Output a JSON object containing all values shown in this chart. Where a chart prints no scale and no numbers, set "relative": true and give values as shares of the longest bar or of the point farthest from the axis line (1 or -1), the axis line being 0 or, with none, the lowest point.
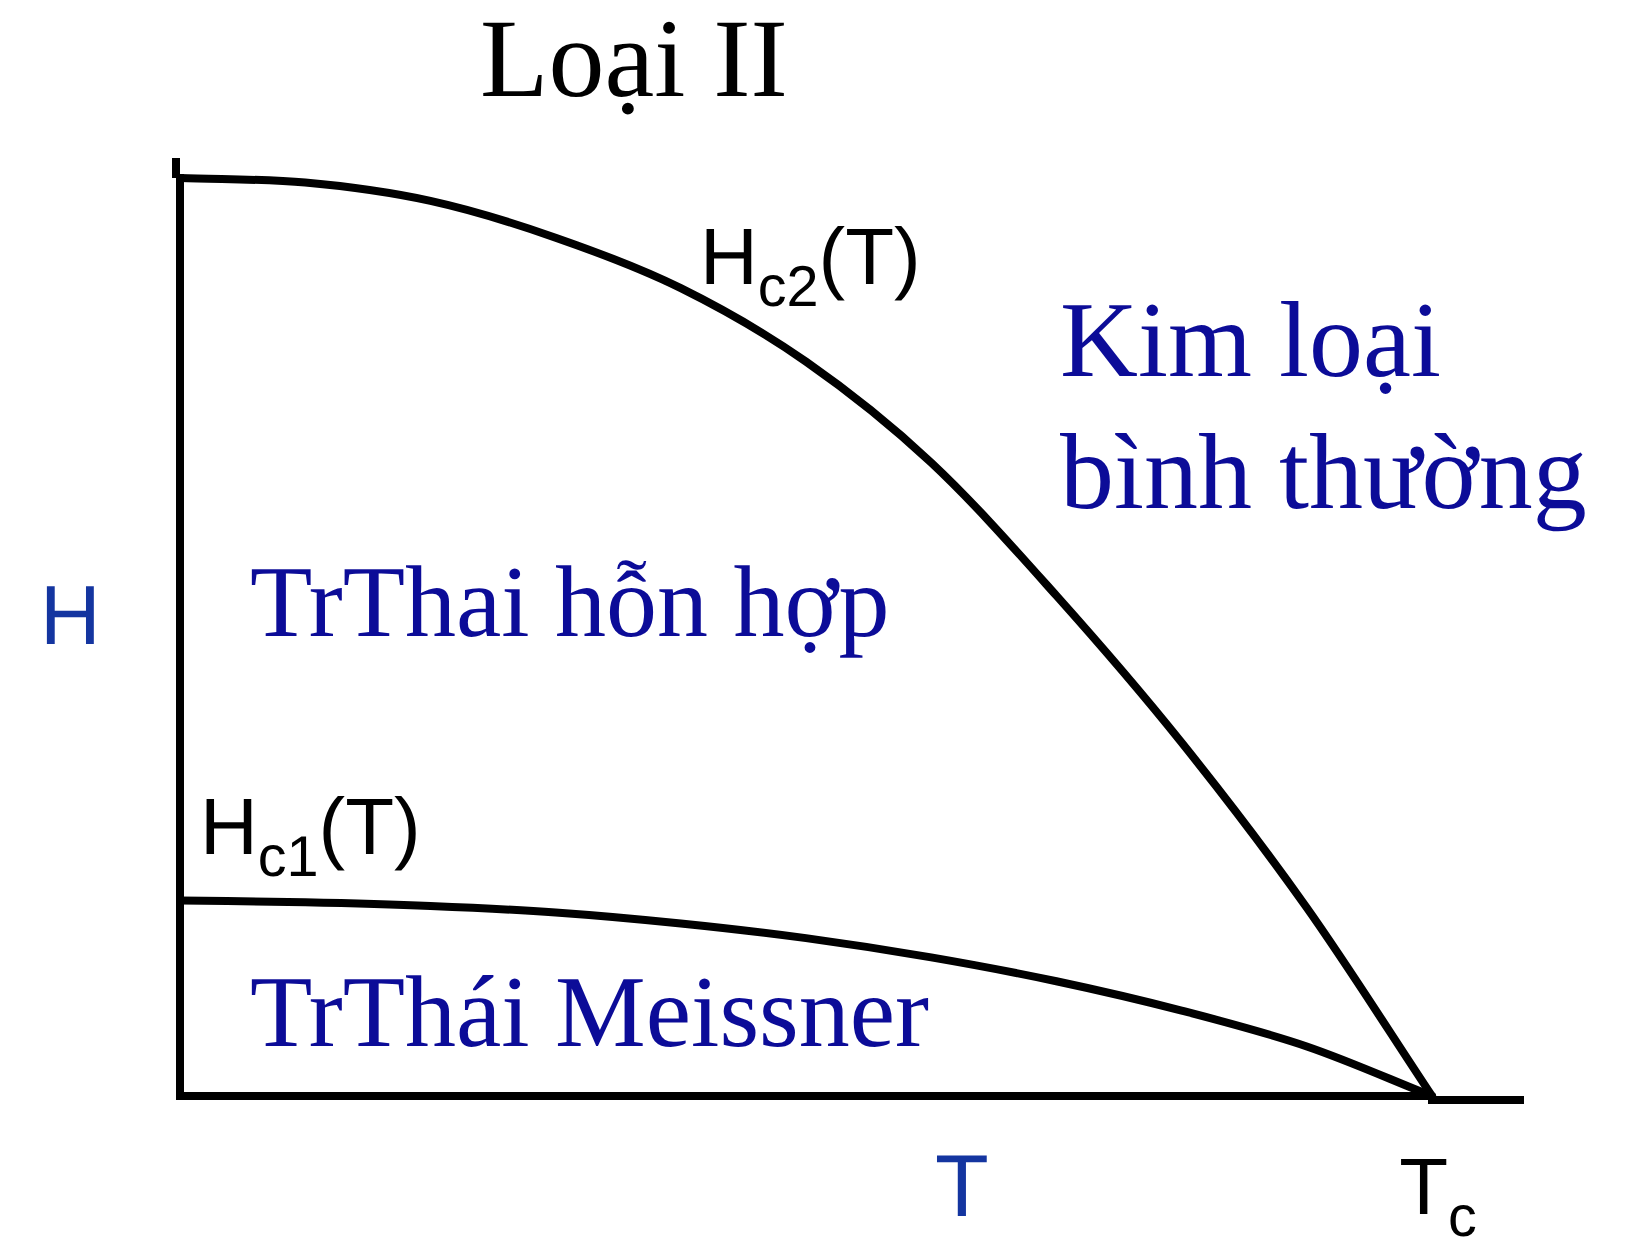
{
  "chart_data": {
    "type": "line",
    "title": "Loại II",
    "xlabel": "T",
    "ylabel": "H",
    "relative": true,
    "marker": "none",
    "categories": [
      null,
      null,
      null,
      null,
      null,
      null,
      null,
      null,
      null,
      null,
      null
    ],
    "series": [
      {
        "name": "H$_{c2}$(T)",
        "color": "#000000",
        "values": [
          1,
          0.995,
          0.975,
          0.935,
          0.88,
          0.8,
          0.69,
          0.545,
          0.385,
          0.205,
          0
        ]
      },
      {
        "name": "H$_{c1}$(T)",
        "color": "#000000",
        "values": [
          0.213,
          0.211,
          0.207,
          0.2,
          0.188,
          0.172,
          0.151,
          0.125,
          0.093,
          0.054,
          0
        ]
      }
    ],
    "annotations": [
      "Kim loại bình thường",
      "TrThai hỗn hợp",
      "TrThái Meissner",
      "T$_{c}$"
    ]
  }
}
